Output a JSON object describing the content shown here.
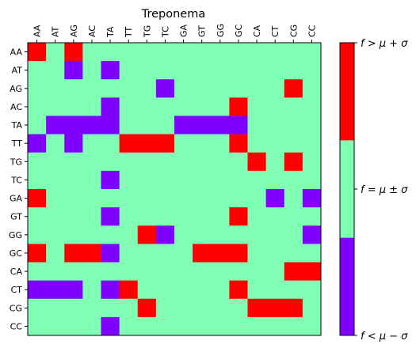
{
  "chart_data": {
    "type": "heatmap",
    "title": "Treponema",
    "x_categories": [
      "AA",
      "AT",
      "AG",
      "AC",
      "TA",
      "TT",
      "TG",
      "TC",
      "GA",
      "GT",
      "GG",
      "GC",
      "CA",
      "CT",
      "CG",
      "CC"
    ],
    "y_categories": [
      "AA",
      "AT",
      "AG",
      "AC",
      "TA",
      "TT",
      "TG",
      "TC",
      "GA",
      "GT",
      "GG",
      "GC",
      "CA",
      "CT",
      "CG",
      "CC"
    ],
    "x_tick_position": "top",
    "grid": false,
    "value_encoding": {
      "-1": "f < μ − σ",
      "0": "f = μ ± σ",
      "1": "f > μ + σ"
    },
    "colors": {
      "low": "#8000ff",
      "mid": "#80ffb4",
      "high": "#ff0000"
    },
    "matrix": [
      [
        1,
        0,
        1,
        0,
        0,
        0,
        0,
        0,
        0,
        0,
        0,
        0,
        0,
        0,
        0,
        0
      ],
      [
        0,
        0,
        -1,
        0,
        -1,
        0,
        0,
        0,
        0,
        0,
        0,
        0,
        0,
        0,
        0,
        0
      ],
      [
        0,
        0,
        0,
        0,
        0,
        0,
        0,
        -1,
        0,
        0,
        0,
        0,
        0,
        0,
        1,
        0
      ],
      [
        0,
        0,
        0,
        0,
        -1,
        0,
        0,
        0,
        0,
        0,
        0,
        1,
        0,
        0,
        0,
        0
      ],
      [
        0,
        -1,
        -1,
        -1,
        -1,
        0,
        0,
        0,
        -1,
        -1,
        -1,
        -1,
        0,
        0,
        0,
        0
      ],
      [
        -1,
        0,
        -1,
        0,
        0,
        1,
        1,
        1,
        0,
        0,
        0,
        1,
        0,
        0,
        0,
        0
      ],
      [
        0,
        0,
        0,
        0,
        0,
        0,
        0,
        0,
        0,
        0,
        0,
        0,
        1,
        0,
        1,
        0
      ],
      [
        0,
        0,
        0,
        0,
        -1,
        0,
        0,
        0,
        0,
        0,
        0,
        0,
        0,
        0,
        0,
        0
      ],
      [
        1,
        0,
        0,
        0,
        0,
        0,
        0,
        0,
        0,
        0,
        0,
        0,
        0,
        -1,
        0,
        -1
      ],
      [
        0,
        0,
        0,
        0,
        -1,
        0,
        0,
        0,
        0,
        0,
        0,
        1,
        0,
        0,
        0,
        0
      ],
      [
        0,
        0,
        0,
        0,
        0,
        0,
        1,
        -1,
        0,
        0,
        0,
        0,
        0,
        0,
        0,
        -1
      ],
      [
        1,
        0,
        1,
        1,
        -1,
        0,
        0,
        0,
        0,
        1,
        1,
        1,
        0,
        0,
        0,
        0
      ],
      [
        0,
        0,
        0,
        0,
        0,
        0,
        0,
        0,
        0,
        0,
        0,
        0,
        0,
        0,
        1,
        1
      ],
      [
        -1,
        -1,
        -1,
        0,
        -1,
        1,
        0,
        0,
        0,
        0,
        0,
        1,
        0,
        0,
        0,
        0
      ],
      [
        0,
        0,
        0,
        0,
        0,
        0,
        1,
        0,
        0,
        0,
        0,
        0,
        1,
        1,
        1,
        0
      ],
      [
        0,
        0,
        0,
        0,
        -1,
        0,
        0,
        0,
        0,
        0,
        0,
        0,
        0,
        0,
        0,
        0
      ]
    ],
    "colorbar": {
      "ticks": [
        {
          "value": 1,
          "label": "f > μ + σ"
        },
        {
          "value": 0,
          "label": "f = μ ± σ"
        },
        {
          "value": -1,
          "label": "f < μ − σ"
        }
      ]
    }
  }
}
